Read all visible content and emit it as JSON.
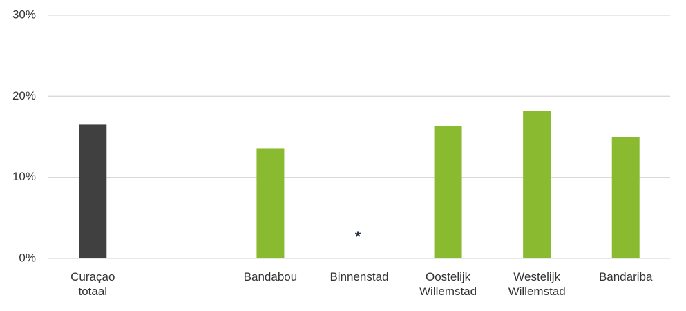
{
  "chart_data": {
    "type": "bar",
    "categories": [
      "Curaçao totaal",
      null,
      "Bandabou",
      "Binnenstad",
      "Oostelijk Willemstad",
      "Westelijk Willemstad",
      "Bandariba"
    ],
    "values": [
      16.5,
      null,
      13.6,
      null,
      16.3,
      18.2,
      15.0
    ],
    "colors": [
      "#404040",
      null,
      "#8aba2f",
      null,
      "#8aba2f",
      "#8aba2f",
      "#8aba2f"
    ],
    "ylim": [
      0,
      30
    ],
    "yticks": [
      {
        "value": 0,
        "label": "0%"
      },
      {
        "value": 10,
        "label": "10%"
      },
      {
        "value": 20,
        "label": "20%"
      },
      {
        "value": 30,
        "label": "30%"
      }
    ],
    "grid": true,
    "annotations": [
      {
        "text": "*",
        "category": "Binnenstad"
      }
    ]
  }
}
